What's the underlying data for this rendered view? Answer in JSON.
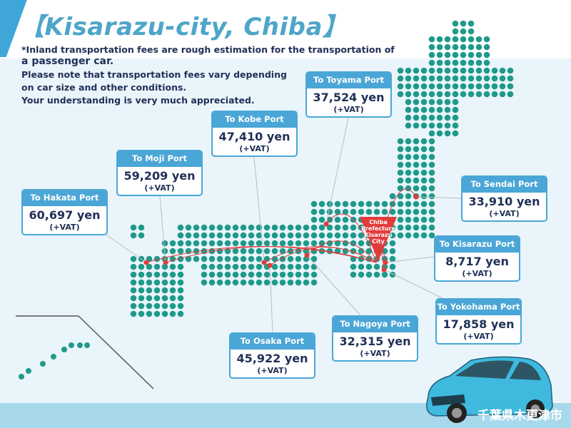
{
  "title": "【Kisarazu-city, Chiba】",
  "notes": [
    "*Inland transportation fees are rough estimation for the transportation of",
    "a passenger car.",
    "Please note that transportation fees vary depending",
    "on car size and other conditions.",
    "Your understanding is very much appreciated."
  ],
  "origin_label": [
    "Chiba",
    "Prefecture",
    "Kisarazu",
    "City"
  ],
  "ports": [
    {
      "name": "To Toyama Port",
      "price": "37,524 yen",
      "vat": "(+VAT)"
    },
    {
      "name": "To Kobe Port",
      "price": "47,410 yen",
      "vat": "(+VAT)"
    },
    {
      "name": "To Moji Port",
      "price": "59,209 yen",
      "vat": "(+VAT)"
    },
    {
      "name": "To Hakata Port",
      "price": "60,697 yen",
      "vat": "(+VAT)"
    },
    {
      "name": "To Sendai Port",
      "price": "33,910 yen",
      "vat": "(+VAT)"
    },
    {
      "name": "To Kisarazu Port",
      "price": "8,717 yen",
      "vat": "(+VAT)"
    },
    {
      "name": "To Yokohama Port",
      "price": "17,858 yen",
      "vat": "(+VAT)"
    },
    {
      "name": "To Nagoya Port",
      "price": "32,315 yen",
      "vat": "(+VAT)"
    },
    {
      "name": "To Osaka Port",
      "price": "45,922 yen",
      "vat": "(+VAT)"
    }
  ],
  "footer_text": "千葉県木更津市",
  "colors": {
    "accent": "#4aa6d6",
    "map_dots": "#1f9a8a",
    "route": "#e23b3b",
    "text": "#1f2f56"
  }
}
